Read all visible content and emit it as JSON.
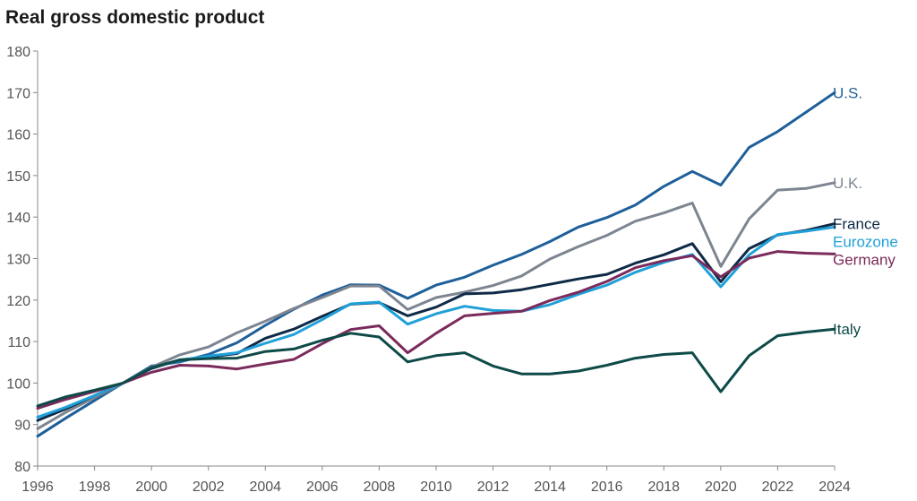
{
  "chart_data": {
    "type": "line",
    "title": "Real gross domestic product",
    "xlabel": "",
    "ylabel": "",
    "x": [
      1996,
      1997,
      1998,
      1999,
      2000,
      2001,
      2002,
      2003,
      2004,
      2005,
      2006,
      2007,
      2008,
      2009,
      2010,
      2011,
      2012,
      2013,
      2014,
      2015,
      2016,
      2017,
      2018,
      2019,
      2020,
      2021,
      2022,
      2023,
      2024
    ],
    "xlim": [
      1996,
      2024
    ],
    "ylim": [
      80,
      180
    ],
    "x_ticks": [
      1996,
      1998,
      2000,
      2002,
      2004,
      2006,
      2008,
      2010,
      2012,
      2014,
      2016,
      2018,
      2020,
      2022,
      2024
    ],
    "y_ticks": [
      80,
      90,
      100,
      110,
      120,
      130,
      140,
      150,
      160,
      170,
      180
    ],
    "grid": false,
    "legend": "direct-labels-right",
    "series": [
      {
        "name": "U.S.",
        "color": "#1f5f99",
        "values": [
          87.2,
          91.6,
          95.8,
          100.0,
          104.1,
          105.1,
          106.9,
          109.7,
          113.9,
          117.8,
          121.2,
          123.7,
          123.6,
          120.4,
          123.6,
          125.5,
          128.4,
          131.0,
          134.1,
          137.6,
          139.9,
          142.9,
          147.4,
          151.0,
          147.7,
          156.8,
          160.6,
          165.3,
          170.0
        ]
      },
      {
        "name": "U.K.",
        "color": "#7d8591",
        "values": [
          89.0,
          93.0,
          96.5,
          100.0,
          103.8,
          106.8,
          108.7,
          112.1,
          114.9,
          118.0,
          120.6,
          123.4,
          123.4,
          117.7,
          120.6,
          121.9,
          123.5,
          125.8,
          129.9,
          132.9,
          135.6,
          139.0,
          141.0,
          143.4,
          128.1,
          139.6,
          146.5,
          146.9,
          148.3
        ]
      },
      {
        "name": "France",
        "color": "#0f2a47",
        "values": [
          91.0,
          93.8,
          97.0,
          100.0,
          103.5,
          105.6,
          106.3,
          107.1,
          110.8,
          113.0,
          116.1,
          119.0,
          119.4,
          116.2,
          118.3,
          121.5,
          121.7,
          122.5,
          123.8,
          125.1,
          126.2,
          128.9,
          130.9,
          133.6,
          124.4,
          132.4,
          135.7,
          136.8,
          138.4
        ]
      },
      {
        "name": "Eurozone",
        "color": "#1fa0d8",
        "values": [
          91.8,
          94.2,
          97.0,
          100.0,
          103.7,
          105.5,
          106.5,
          107.3,
          109.6,
          111.7,
          115.3,
          119.1,
          119.5,
          114.2,
          116.7,
          118.5,
          117.5,
          117.3,
          118.9,
          121.4,
          123.6,
          126.7,
          129.1,
          131.0,
          123.2,
          130.9,
          135.8,
          136.6,
          137.6
        ]
      },
      {
        "name": "Germany",
        "color": "#7a2a5b",
        "values": [
          93.9,
          96.1,
          98.0,
          100.0,
          102.6,
          104.3,
          104.1,
          103.4,
          104.6,
          105.7,
          109.5,
          112.9,
          113.8,
          107.3,
          112.0,
          116.2,
          116.8,
          117.3,
          119.9,
          121.9,
          124.5,
          127.8,
          129.5,
          130.7,
          125.6,
          130.1,
          131.7,
          131.3,
          131.1
        ]
      },
      {
        "name": "Italy",
        "color": "#0e4a47",
        "values": [
          94.5,
          96.7,
          98.3,
          100.0,
          103.7,
          105.6,
          105.9,
          106.0,
          107.6,
          108.2,
          110.3,
          112.0,
          111.1,
          105.1,
          106.6,
          107.3,
          104.1,
          102.2,
          102.2,
          102.9,
          104.3,
          106.0,
          106.9,
          107.3,
          97.9,
          106.6,
          111.4,
          112.3,
          113.0
        ]
      }
    ]
  }
}
